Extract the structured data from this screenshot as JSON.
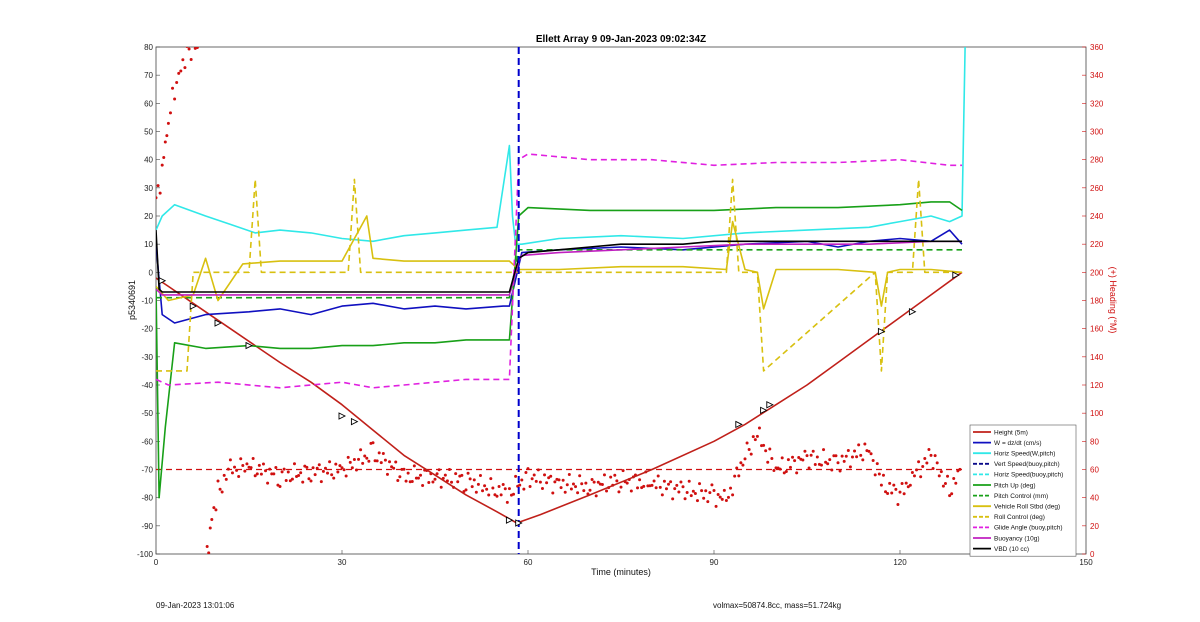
{
  "chart_data": {
    "type": "line",
    "title": "Ellett Array 9 09-Jan-2023 09:02:34Z",
    "xlabel": "Time (minutes)",
    "ylabel": "p5340691",
    "y2label": "(+) Heading (°M)",
    "xlim": [
      0,
      150
    ],
    "ylim": [
      -100,
      80
    ],
    "y2lim": [
      0,
      360
    ],
    "xticks": [
      0,
      30,
      60,
      90,
      120,
      150
    ],
    "yticks": [
      -100,
      -90,
      -80,
      -70,
      -60,
      -50,
      -40,
      -30,
      -20,
      -10,
      0,
      10,
      20,
      30,
      40,
      50,
      60,
      70,
      80
    ],
    "y2ticks": [
      0,
      20,
      40,
      60,
      80,
      100,
      120,
      140,
      160,
      180,
      200,
      220,
      240,
      260,
      280,
      300,
      320,
      340,
      360
    ],
    "legend_location": "bottom-right",
    "vertical_line": {
      "x": 58.5,
      "color": "#0000cc",
      "style": "dashed"
    },
    "series": [
      {
        "name": "Height (5m)",
        "color": "#c0201a",
        "style": "solid",
        "x": [
          0,
          2,
          8,
          12,
          16,
          20,
          25,
          30,
          35,
          40,
          45,
          50,
          55,
          58.2,
          62,
          70,
          80,
          90,
          95,
          100,
          105,
          110,
          115,
          120,
          125,
          130
        ],
        "y": [
          -2,
          -5,
          -14,
          -20,
          -26,
          -32,
          -39,
          -47,
          -56,
          -65,
          -72,
          -79,
          -85,
          -89,
          -86,
          -79,
          -70,
          -60,
          -54,
          -47,
          -40,
          -32,
          -24,
          -16,
          -8,
          0
        ]
      },
      {
        "name": "W = dz/dt (cm/s)",
        "color": "#1010c0",
        "style": "solid",
        "x": [
          0,
          1,
          3,
          8,
          15,
          20,
          25,
          30,
          35,
          40,
          45,
          50,
          56,
          57,
          59,
          65,
          75,
          85,
          95,
          105,
          110,
          115,
          120,
          125,
          128,
          130
        ],
        "y": [
          10,
          -15,
          -18,
          -15,
          -14,
          -13,
          -15,
          -12,
          -11,
          -13,
          -12,
          -13,
          -12,
          -12,
          7,
          8,
          9,
          8,
          10,
          11,
          9,
          11,
          12,
          11,
          15,
          10
        ]
      },
      {
        "name": "Horiz Speed(W,pitch)",
        "color": "#30e8e8",
        "style": "solid",
        "x": [
          0,
          1,
          3,
          8,
          12,
          16,
          20,
          25,
          30,
          35,
          40,
          45,
          50,
          55,
          57,
          57.5,
          58,
          59,
          65,
          75,
          85,
          95,
          105,
          115,
          120,
          125,
          128,
          130,
          130.5
        ],
        "y": [
          15,
          20,
          24,
          20,
          17,
          14,
          15,
          14,
          12,
          11,
          13,
          14,
          15,
          16,
          45,
          20,
          10,
          10,
          12,
          13,
          12,
          14,
          15,
          16,
          18,
          20,
          18,
          20,
          80
        ]
      },
      {
        "name": "Vert Speed(buoy,pitch)",
        "color": "#0a0a8a",
        "style": "dashed",
        "x": [],
        "y": []
      },
      {
        "name": "Horiz Speed(buoy,pitch)",
        "color": "#30e8e8",
        "style": "dashed",
        "x": [],
        "y": []
      },
      {
        "name": "Pitch Up (deg)",
        "color": "#18a018",
        "style": "solid",
        "x": [
          0,
          0.5,
          1.5,
          3,
          8,
          15,
          20,
          25,
          30,
          35,
          40,
          45,
          50,
          55,
          57,
          58.5,
          60,
          70,
          80,
          90,
          100,
          110,
          120,
          125,
          128,
          130
        ],
        "y": [
          -5,
          -80,
          -55,
          -25,
          -27,
          -26,
          -27,
          -27,
          -26,
          -26,
          -25,
          -25,
          -24,
          -24,
          -24,
          20,
          23,
          22,
          22,
          22,
          23,
          23,
          24,
          25,
          25,
          22
        ]
      },
      {
        "name": "Pitch Control (mm)",
        "color": "#18a018",
        "style": "dashed",
        "x": [
          0,
          57,
          58.5,
          130
        ],
        "y": [
          -9,
          -9,
          8,
          8
        ]
      },
      {
        "name": "Vehicle Roll Stbd (deg)",
        "color": "#d8c010",
        "style": "solid",
        "x": [
          0,
          2,
          6,
          8,
          10,
          14,
          20,
          30,
          34,
          35,
          40,
          50,
          57,
          58.5,
          65,
          75,
          85,
          92,
          93,
          95,
          97,
          98,
          100,
          110,
          116,
          117,
          118,
          120,
          125,
          130
        ],
        "y": [
          -5,
          -10,
          -8,
          5,
          -10,
          3,
          4,
          4,
          20,
          5,
          4,
          4,
          4,
          1,
          1,
          2,
          2,
          1,
          18,
          1,
          0,
          -13,
          1,
          1,
          0,
          -12,
          0,
          1,
          1,
          0
        ]
      },
      {
        "name": "Roll Control (deg)",
        "color": "#d8c010",
        "style": "dashed",
        "x": [
          0,
          5,
          6,
          10,
          11,
          15,
          16,
          17,
          30,
          31,
          32,
          33,
          57,
          58.5,
          92,
          93,
          94,
          97,
          98,
          116,
          117,
          118,
          122,
          123,
          124,
          130
        ],
        "y": [
          -35,
          -35,
          0,
          0,
          0,
          0,
          33,
          0,
          0,
          0,
          33,
          0,
          0,
          0,
          0,
          33,
          0,
          0,
          -35,
          0,
          -35,
          0,
          0,
          33,
          0,
          0
        ]
      },
      {
        "name": "Glide Angle (buoy,pitch)",
        "color": "#e020e0",
        "style": "dashed",
        "x": [
          0,
          2,
          10,
          20,
          30,
          35,
          40,
          50,
          57,
          58.5,
          60,
          70,
          80,
          90,
          100,
          110,
          120,
          128,
          130
        ],
        "y": [
          -38,
          -40,
          -39,
          -41,
          -39,
          -41,
          -40,
          -38,
          -38,
          40,
          42,
          40,
          40,
          38,
          39,
          39,
          40,
          38,
          38
        ]
      },
      {
        "name": "Buoyancy (10g)",
        "color": "#c020c0",
        "style": "solid",
        "x": [
          0,
          1,
          57,
          58.5,
          59,
          65,
          75,
          85,
          95,
          105,
          115,
          125,
          130
        ],
        "y": [
          -6,
          -8,
          -8,
          4,
          6,
          7,
          8,
          9,
          10,
          10,
          10,
          11,
          11
        ]
      },
      {
        "name": "VBD (10 cc)",
        "color": "#000000",
        "style": "solid",
        "x": [
          0,
          0.5,
          1,
          57,
          58.5,
          60,
          65,
          70,
          75,
          80,
          85,
          90,
          95,
          100,
          130
        ],
        "y": [
          15,
          -6,
          -7,
          -7,
          5,
          7,
          8,
          9,
          10,
          10,
          10,
          11,
          11,
          11,
          11
        ]
      }
    ],
    "heading": {
      "name": "(+) Heading (°M)",
      "axis": "right",
      "color": "#d01010",
      "x": [
        0,
        1,
        1.5,
        2,
        3,
        4,
        5,
        6,
        7,
        8,
        8.5,
        9,
        10,
        12,
        15,
        20,
        25,
        30,
        35,
        40,
        45,
        50,
        55,
        57,
        60,
        65,
        70,
        75,
        80,
        85,
        90,
        92,
        95,
        97,
        100,
        105,
        110,
        115,
        117,
        120,
        122,
        125,
        128,
        130
      ],
      "y": [
        250,
        270,
        290,
        310,
        330,
        345,
        355,
        360,
        360,
        3,
        8,
        25,
        45,
        60,
        62,
        55,
        58,
        60,
        72,
        55,
        55,
        52,
        45,
        44,
        55,
        50,
        48,
        52,
        50,
        45,
        42,
        38,
        70,
        85,
        60,
        68,
        65,
        75,
        50,
        42,
        55,
        70,
        45,
        60
      ]
    },
    "heading_ref": {
      "axis": "right",
      "y": 60,
      "color": "#d01010",
      "style": "dashed",
      "x": [
        0,
        130
      ]
    },
    "markers_height": [
      {
        "x": 1,
        "y": -3
      },
      {
        "x": 6,
        "y": -12
      },
      {
        "x": 10,
        "y": -18
      },
      {
        "x": 15,
        "y": -26
      },
      {
        "x": 30,
        "y": -51
      },
      {
        "x": 32,
        "y": -53
      },
      {
        "x": 57,
        "y": -88
      },
      {
        "x": 58.5,
        "y": -89
      },
      {
        "x": 94,
        "y": -54
      },
      {
        "x": 98,
        "y": -49
      },
      {
        "x": 99,
        "y": -47
      },
      {
        "x": 117,
        "y": -21
      },
      {
        "x": 122,
        "y": -14
      },
      {
        "x": 129,
        "y": -1
      }
    ]
  },
  "footer": {
    "left": "09-Jan-2023 13:01:06",
    "right": "volmax=50874.8cc, mass=51.724kg"
  }
}
